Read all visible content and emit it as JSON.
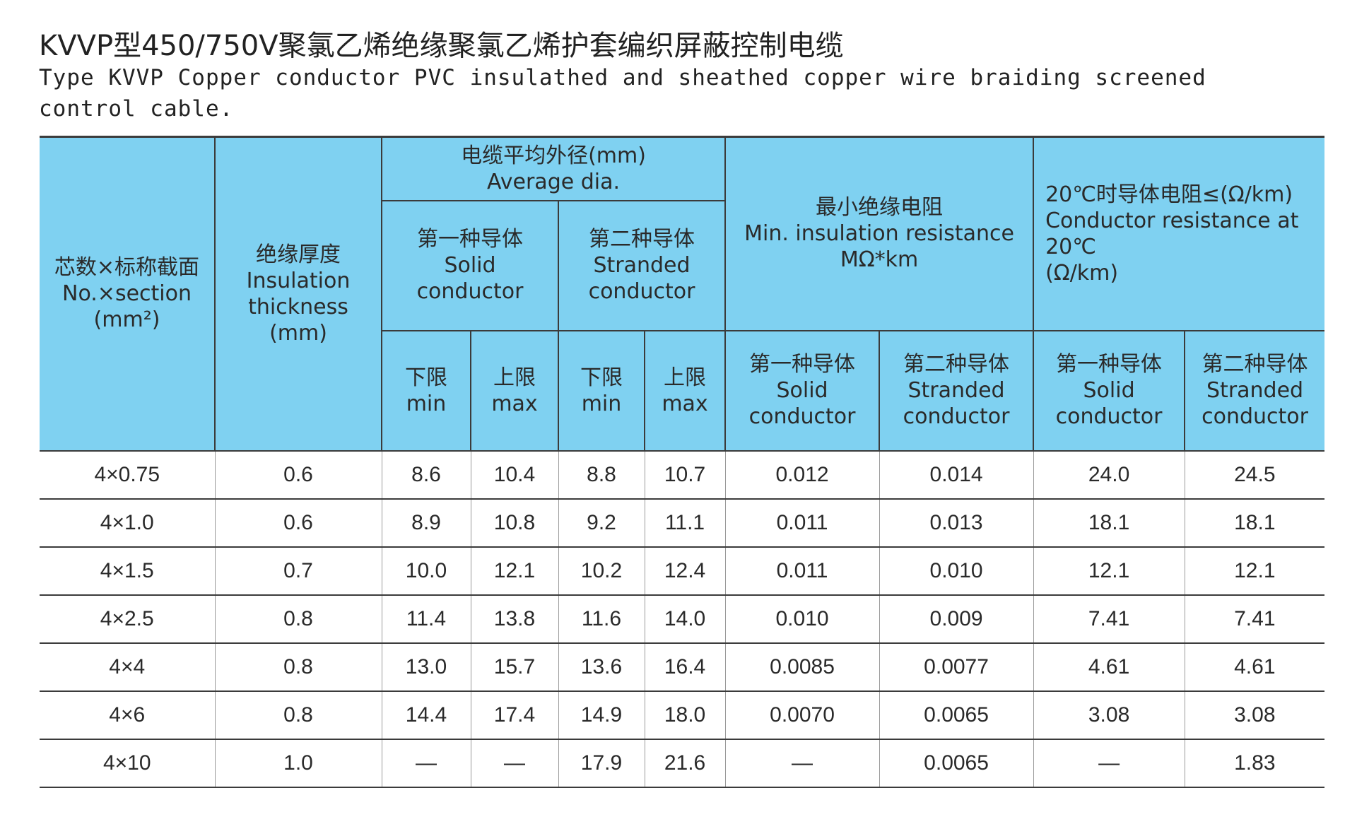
{
  "title_cn": "KVVP型450/750V聚氯乙烯绝缘聚氯乙烯护套编织屏蔽控制电缆",
  "title_en": "Type KVVP Copper conductor PVC insulathed and sheathed copper wire braiding screened control cable.",
  "header": {
    "section": {
      "cn": "芯数×标称截面",
      "en": "No.×section",
      "unit": "(mm²)"
    },
    "insulation": {
      "cn": "绝缘厚度",
      "en1": "Insulation",
      "en2": "thickness",
      "unit": "(mm)"
    },
    "avg_dia": {
      "cn": "电缆平均外径(mm)",
      "en": "Average dia."
    },
    "min_res": {
      "cn": "最小绝缘电阻",
      "en": "Min. insulation resistance",
      "unit": "MΩ*km"
    },
    "cond_res": {
      "cn": "20℃时导体电阻≤(Ω/km)",
      "en": "Conductor resistance at 20℃",
      "unit": "(Ω/km)"
    },
    "solid": {
      "cn": "第一种导体",
      "en1": "Solid",
      "en2": "conductor"
    },
    "stranded": {
      "cn": "第二种导体",
      "en1": "Stranded",
      "en2": "conductor"
    },
    "lower": {
      "cn": "下限",
      "en": "min"
    },
    "upper": {
      "cn": "上限",
      "en": "max"
    }
  },
  "rows": [
    {
      "section": "4×0.75",
      "ins": "0.6",
      "s_min": "8.6",
      "s_max": "10.4",
      "t_min": "8.8",
      "t_max": "10.7",
      "r_solid": "0.012",
      "r_strand": "0.014",
      "c_solid": "24.0",
      "c_strand": "24.5"
    },
    {
      "section": "4×1.0",
      "ins": "0.6",
      "s_min": "8.9",
      "s_max": "10.8",
      "t_min": "9.2",
      "t_max": "11.1",
      "r_solid": "0.011",
      "r_strand": "0.013",
      "c_solid": "18.1",
      "c_strand": "18.1"
    },
    {
      "section": "4×1.5",
      "ins": "0.7",
      "s_min": "10.0",
      "s_max": "12.1",
      "t_min": "10.2",
      "t_max": "12.4",
      "r_solid": "0.011",
      "r_strand": "0.010",
      "c_solid": "12.1",
      "c_strand": "12.1"
    },
    {
      "section": "4×2.5",
      "ins": "0.8",
      "s_min": "11.4",
      "s_max": "13.8",
      "t_min": "11.6",
      "t_max": "14.0",
      "r_solid": "0.010",
      "r_strand": "0.009",
      "c_solid": "7.41",
      "c_strand": "7.41"
    },
    {
      "section": "4×4",
      "ins": "0.8",
      "s_min": "13.0",
      "s_max": "15.7",
      "t_min": "13.6",
      "t_max": "16.4",
      "r_solid": "0.0085",
      "r_strand": "0.0077",
      "c_solid": "4.61",
      "c_strand": "4.61"
    },
    {
      "section": "4×6",
      "ins": "0.8",
      "s_min": "14.4",
      "s_max": "17.4",
      "t_min": "14.9",
      "t_max": "18.0",
      "r_solid": "0.0070",
      "r_strand": "0.0065",
      "c_solid": "3.08",
      "c_strand": "3.08"
    },
    {
      "section": "4×10",
      "ins": "1.0",
      "s_min": "—",
      "s_max": "—",
      "t_min": "17.9",
      "t_max": "21.6",
      "r_solid": "—",
      "r_strand": "0.0065",
      "c_solid": "—",
      "c_strand": "1.83"
    }
  ]
}
